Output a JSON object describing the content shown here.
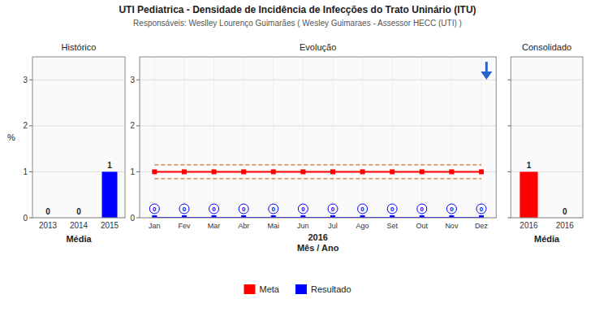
{
  "title": "UTI Pediatrica - Densidade de Incidência de Infecções do Trato Uninário (ITU)",
  "subtitle": "Responsáveis: Weslley Lourenço Guimarães ( Wesley Guimaraes - Assessor HECC (UTI) )",
  "chart_data": [
    {
      "type": "bar",
      "title": "Histórico",
      "xlabel": "Média",
      "ylabel": "%",
      "categories": [
        "2013",
        "2014",
        "2015"
      ],
      "values": [
        0,
        0,
        1
      ],
      "color": "#0000ff",
      "ylim": [
        0,
        3.5
      ],
      "yticks": [
        0,
        1,
        2,
        3
      ],
      "grid": true,
      "data_labels": true
    },
    {
      "type": "line",
      "title": "Evolução",
      "xlabel": [
        "2016",
        "Mês / Ano"
      ],
      "categories": [
        "Jan",
        "Fev",
        "Mar",
        "Abr",
        "Mai",
        "Jun",
        "Jul",
        "Ago",
        "Set",
        "Out",
        "Nov",
        "Dez"
      ],
      "series": [
        {
          "values": [
            1.15,
            1.15,
            1.15,
            1.15,
            1.15,
            1.15,
            1.15,
            1.15,
            1.15,
            1.15,
            1.15,
            1.15
          ],
          "color": "#cc7722",
          "line_style": "dashed"
        },
        {
          "values": [
            0.85,
            0.85,
            0.85,
            0.85,
            0.85,
            0.85,
            0.85,
            0.85,
            0.85,
            0.85,
            0.85,
            0.85
          ],
          "color": "#cc7722",
          "line_style": "dashed"
        },
        {
          "name": "Meta",
          "values": [
            1,
            1,
            1,
            1,
            1,
            1,
            1,
            1,
            1,
            1,
            1,
            1
          ],
          "color": "#ff0000",
          "marker": "square",
          "line_style": "solid"
        },
        {
          "name": "Resultado",
          "values": [
            0,
            0,
            0,
            0,
            0,
            0,
            0,
            0,
            0,
            0,
            0,
            0
          ],
          "color": "#0000ff",
          "marker": "square",
          "line_style": "solid",
          "data_labels": true
        }
      ],
      "ylim": [
        0,
        3.5
      ],
      "yticks": [
        0,
        1,
        2,
        3
      ],
      "grid": true,
      "legend": "bottom"
    },
    {
      "type": "bar",
      "title": "Consolidado",
      "xlabel": "Média",
      "categories": [
        "2016",
        "2016"
      ],
      "values": [
        1,
        0
      ],
      "colors": [
        "#ff0000",
        "#0000ff"
      ],
      "ylim": [
        0,
        3.5
      ],
      "yticks": [
        0,
        1,
        2,
        3
      ],
      "grid": true,
      "data_labels": true,
      "tick_labels": "x"
    }
  ]
}
